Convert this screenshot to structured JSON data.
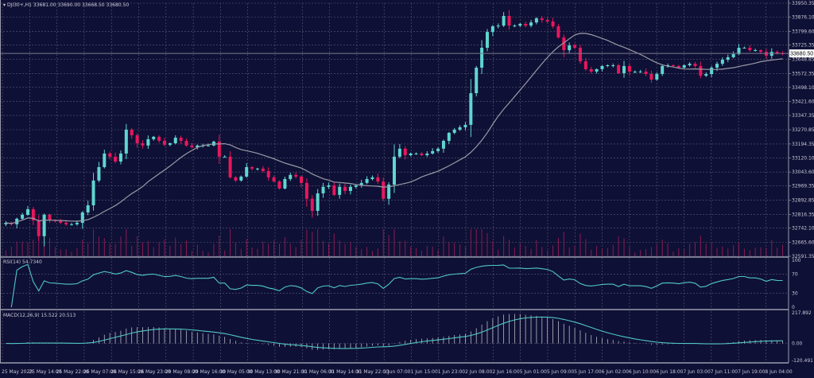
{
  "header": {
    "symbol": "DJI30+,H1",
    "ohlc": "33681.00 33690.00 33668.50 33680.50"
  },
  "colors": {
    "background": "#0f1035",
    "bull": "#5fd6d0",
    "bear": "#e8175d",
    "moving_average": "#9a9aa6",
    "grid": "#5a5c78",
    "indicator_line": "#4fc8c4",
    "macd_histogram": "#b8b8c4"
  },
  "chart_data": [
    {
      "type": "candlestick",
      "title": "",
      "timeframe": "H1",
      "current_price": "33680.50",
      "ylim": [
        32591.35,
        33950.35
      ],
      "y_ticks": [
        "33950.35",
        "33876.10",
        "33799.60",
        "33725.35",
        "33648.85",
        "33572.35",
        "33498.10",
        "33421.60",
        "33347.35",
        "33270.85",
        "33194.35",
        "33120.10",
        "33043.60",
        "32969.35",
        "32892.85",
        "32816.35",
        "32742.10",
        "32665.60",
        "32591.35"
      ],
      "x_ticks": [
        "25 May 2023",
        "25 May 14:00",
        "25 May 22:00",
        "26 May 07:00",
        "26 May 15:00",
        "26 May 23:00",
        "29 May 08:00",
        "29 May 16:00",
        "30 May 05:00",
        "30 May 13:00",
        "30 May 21:00",
        "31 May 06:00",
        "31 May 14:00",
        "31 May 22:00",
        "1 Jun 07:00",
        "1 Jun 15:00",
        "1 Jun 23:00",
        "2 Jun 08:00",
        "2 Jun 16:00",
        "5 Jun 01:00",
        "5 Jun 09:00",
        "5 Jun 17:00",
        "6 Jun 02:00",
        "6 Jun 10:00",
        "6 Jun 18:00",
        "7 Jun 03:00",
        "7 Jun 11:00",
        "7 Jun 19:00",
        "8 Jun 04:00"
      ],
      "closes": [
        32771,
        32763,
        32793,
        32814,
        32844,
        32784,
        32699,
        32814,
        32784,
        32780,
        32771,
        32763,
        32763,
        32771,
        32827,
        32865,
        32998,
        33070,
        33143,
        33126,
        33100,
        33143,
        33271,
        33241,
        33198,
        33186,
        33220,
        33233,
        33211,
        33190,
        33198,
        33228,
        33211,
        33186,
        33177,
        33186,
        33186,
        33186,
        33207,
        33126,
        33126,
        33015,
        32998,
        33019,
        33070,
        33062,
        33062,
        33049,
        33015,
        32993,
        32955,
        33006,
        33028,
        33019,
        32985,
        32900,
        32835,
        32929,
        32964,
        32972,
        32921,
        32964,
        32942,
        32964,
        32972,
        32985,
        33006,
        33015,
        32993,
        32900,
        32976,
        33126,
        33169,
        33134,
        33143,
        33143,
        33134,
        33143,
        33156,
        33169,
        33211,
        33254,
        33271,
        33284,
        33297,
        33467,
        33604,
        33711,
        33796,
        33826,
        33830,
        33882,
        33830,
        33830,
        33839,
        33830,
        33847,
        33869,
        33860,
        33852,
        33826,
        33766,
        33698,
        33724,
        33711,
        33638,
        33596,
        33583,
        33596,
        33613,
        33617,
        33617,
        33574,
        33613,
        33583,
        33583,
        33583,
        33570,
        33540,
        33570,
        33613,
        33617,
        33613,
        33604,
        33617,
        33625,
        33613,
        33561,
        33570,
        33604,
        33625,
        33647,
        33660,
        33677,
        33711,
        33711,
        33698,
        33698,
        33689,
        33668,
        33689,
        33681,
        33680.5
      ],
      "overlay": "moving average",
      "volume": "tick volume histogram"
    },
    {
      "type": "line",
      "title": "RSI(14) 54.7340",
      "ylim": [
        0,
        100
      ],
      "y_ticks": [
        "100",
        "70",
        "30",
        "0"
      ]
    },
    {
      "type": "bar+line",
      "title": "MACD(12,26,9) 15.522 20.513",
      "ylim": [
        -120.491,
        217.892
      ],
      "y_ticks": [
        "217.892",
        "0.00",
        "-120.491"
      ]
    }
  ]
}
